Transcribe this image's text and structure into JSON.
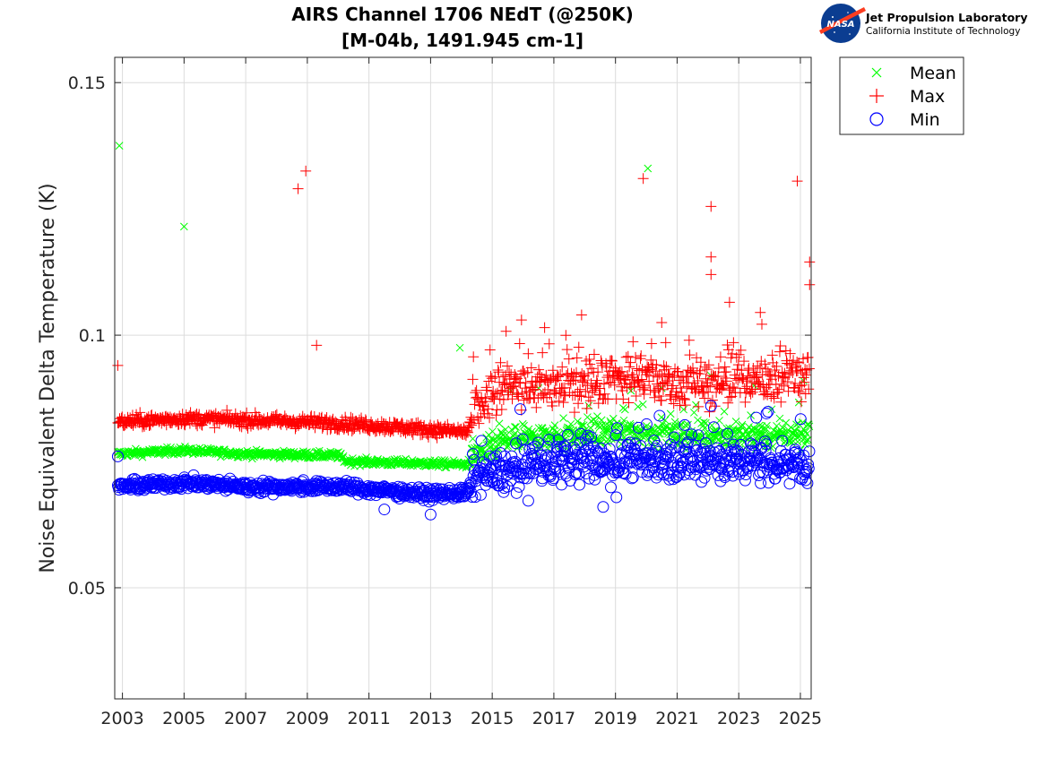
{
  "logo": {
    "emblem_text": "NASA",
    "line1": "Jet Propulsion Laboratory",
    "line2": "California Institute of Technology"
  },
  "chart_data": {
    "type": "scatter",
    "title": [
      "AIRS Channel 1706 NEdT (@250K)",
      "[M-04b, 1491.945 cm-1]"
    ],
    "xlabel": "",
    "ylabel": "Noise Equivalent Delta Temperature (K)",
    "xlim": [
      2002.75,
      2025.35
    ],
    "ylim": [
      0.028,
      0.155
    ],
    "xticks": [
      2003,
      2005,
      2007,
      2009,
      2011,
      2013,
      2015,
      2017,
      2019,
      2021,
      2023,
      2025
    ],
    "xtick_labels": [
      "2003",
      "2005",
      "2007",
      "2009",
      "2011",
      "2013",
      "2015",
      "2017",
      "2019",
      "2021",
      "2023",
      "2025"
    ],
    "yticks": [
      0.05,
      0.1,
      0.15
    ],
    "ytick_labels": [
      "0.05",
      "0.1",
      "0.15"
    ],
    "grid": true,
    "legend_position": "outside-top-right",
    "series": [
      {
        "name": "Mean",
        "marker": "x",
        "color": "#00ff00",
        "trend": [
          [
            2002.8,
            0.0765
          ],
          [
            2005.0,
            0.0772
          ],
          [
            2007.0,
            0.0765
          ],
          [
            2010.0,
            0.0762
          ],
          [
            2010.3,
            0.075
          ],
          [
            2014.2,
            0.0744
          ],
          [
            2014.4,
            0.076
          ],
          [
            2015.5,
            0.079
          ],
          [
            2017.0,
            0.08
          ],
          [
            2019.0,
            0.081
          ],
          [
            2021.0,
            0.0805
          ],
          [
            2023.0,
            0.08
          ],
          [
            2025.3,
            0.0805
          ]
        ],
        "spread": 0.005,
        "outliers": [
          [
            2002.9,
            0.1375
          ],
          [
            2005.0,
            0.1215
          ],
          [
            2013.95,
            0.0975
          ],
          [
            2020.05,
            0.133
          ],
          [
            2015.6,
            0.089
          ],
          [
            2016.5,
            0.0895
          ],
          [
            2019.5,
            0.089
          ],
          [
            2020.5,
            0.0895
          ],
          [
            2022.1,
            0.092
          ],
          [
            2023.5,
            0.09
          ],
          [
            2025.1,
            0.091
          ]
        ]
      },
      {
        "name": "Max",
        "marker": "+",
        "color": "#ff0000",
        "trend": [
          [
            2002.8,
            0.0828
          ],
          [
            2005.0,
            0.0835
          ],
          [
            2007.0,
            0.0832
          ],
          [
            2010.0,
            0.0826
          ],
          [
            2014.2,
            0.0808
          ],
          [
            2014.4,
            0.085
          ],
          [
            2015.5,
            0.09
          ],
          [
            2017.0,
            0.09
          ],
          [
            2019.0,
            0.0915
          ],
          [
            2021.0,
            0.0905
          ],
          [
            2023.0,
            0.0905
          ],
          [
            2025.3,
            0.0925
          ]
        ],
        "spread": 0.009,
        "outliers": [
          [
            2002.85,
            0.094
          ],
          [
            2008.7,
            0.129
          ],
          [
            2008.95,
            0.1325
          ],
          [
            2009.3,
            0.098
          ],
          [
            2015.95,
            0.103
          ],
          [
            2016.7,
            0.1015
          ],
          [
            2017.9,
            0.104
          ],
          [
            2019.9,
            0.131
          ],
          [
            2020.5,
            0.1025
          ],
          [
            2022.1,
            0.1255
          ],
          [
            2022.1,
            0.1155
          ],
          [
            2022.1,
            0.112
          ],
          [
            2022.7,
            0.1065
          ],
          [
            2023.7,
            0.1045
          ],
          [
            2024.9,
            0.1305
          ],
          [
            2025.3,
            0.1145
          ],
          [
            2025.3,
            0.11
          ]
        ]
      },
      {
        "name": "Min",
        "marker": "o",
        "color": "#0000ff",
        "trend": [
          [
            2002.8,
            0.07
          ],
          [
            2005.0,
            0.0708
          ],
          [
            2007.0,
            0.07
          ],
          [
            2010.0,
            0.07
          ],
          [
            2013.0,
            0.0685
          ],
          [
            2014.2,
            0.0688
          ],
          [
            2014.4,
            0.072
          ],
          [
            2015.5,
            0.073
          ],
          [
            2017.0,
            0.075
          ],
          [
            2019.0,
            0.0745
          ],
          [
            2021.0,
            0.0755
          ],
          [
            2023.0,
            0.075
          ],
          [
            2025.3,
            0.0745
          ]
        ],
        "spread": 0.008,
        "outliers": [
          [
            2002.85,
            0.076
          ],
          [
            2013.0,
            0.0645
          ],
          [
            2011.5,
            0.0655
          ],
          [
            2018.6,
            0.066
          ],
          [
            2022.1,
            0.086
          ],
          [
            2023.9,
            0.0845
          ]
        ]
      }
    ]
  }
}
